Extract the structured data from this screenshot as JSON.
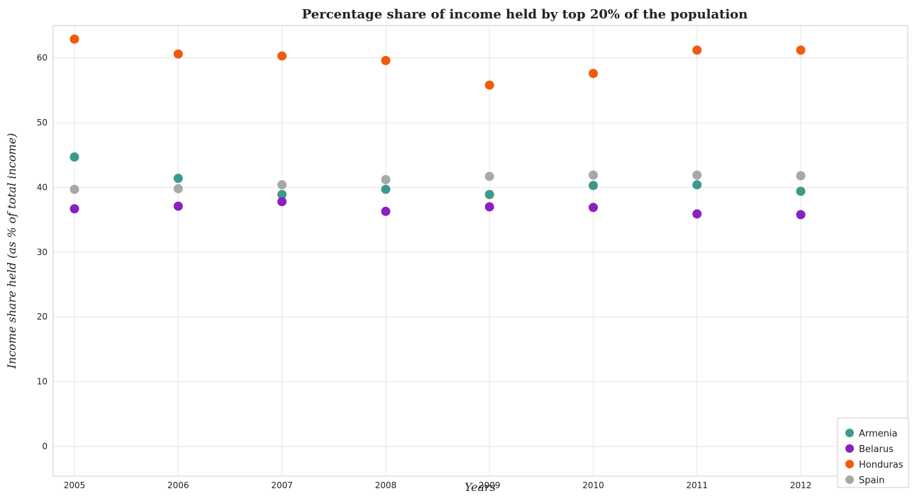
{
  "chart_data": {
    "type": "scatter",
    "title": "Percentage share of income held by top 20% of the population",
    "xlabel": "Years",
    "ylabel": "Income share held (as % of total income)",
    "categories": [
      "2005",
      "2006",
      "2007",
      "2008",
      "2009",
      "2010",
      "2011",
      "2012"
    ],
    "ylim": [
      0,
      65
    ],
    "yticks": [
      "0",
      "10",
      "20",
      "30",
      "40",
      "50",
      "60"
    ],
    "grid": true,
    "legend_position": "bottom-right",
    "series": [
      {
        "name": "Armenia",
        "color": "#3a9a8c",
        "values": [
          44.7,
          41.4,
          38.9,
          39.7,
          38.9,
          40.3,
          40.4,
          39.4
        ]
      },
      {
        "name": "Belarus",
        "color": "#8b1fc1",
        "values": [
          36.7,
          37.1,
          37.8,
          36.3,
          37.0,
          36.9,
          35.9,
          35.8
        ]
      },
      {
        "name": "Honduras",
        "color": "#f05a0f",
        "values": [
          62.9,
          60.6,
          60.3,
          59.6,
          55.8,
          57.6,
          61.2,
          61.2
        ]
      },
      {
        "name": "Spain",
        "color": "#a8a8a8",
        "values": [
          39.7,
          39.8,
          40.4,
          41.2,
          41.7,
          41.9,
          41.9,
          41.8
        ]
      }
    ]
  }
}
